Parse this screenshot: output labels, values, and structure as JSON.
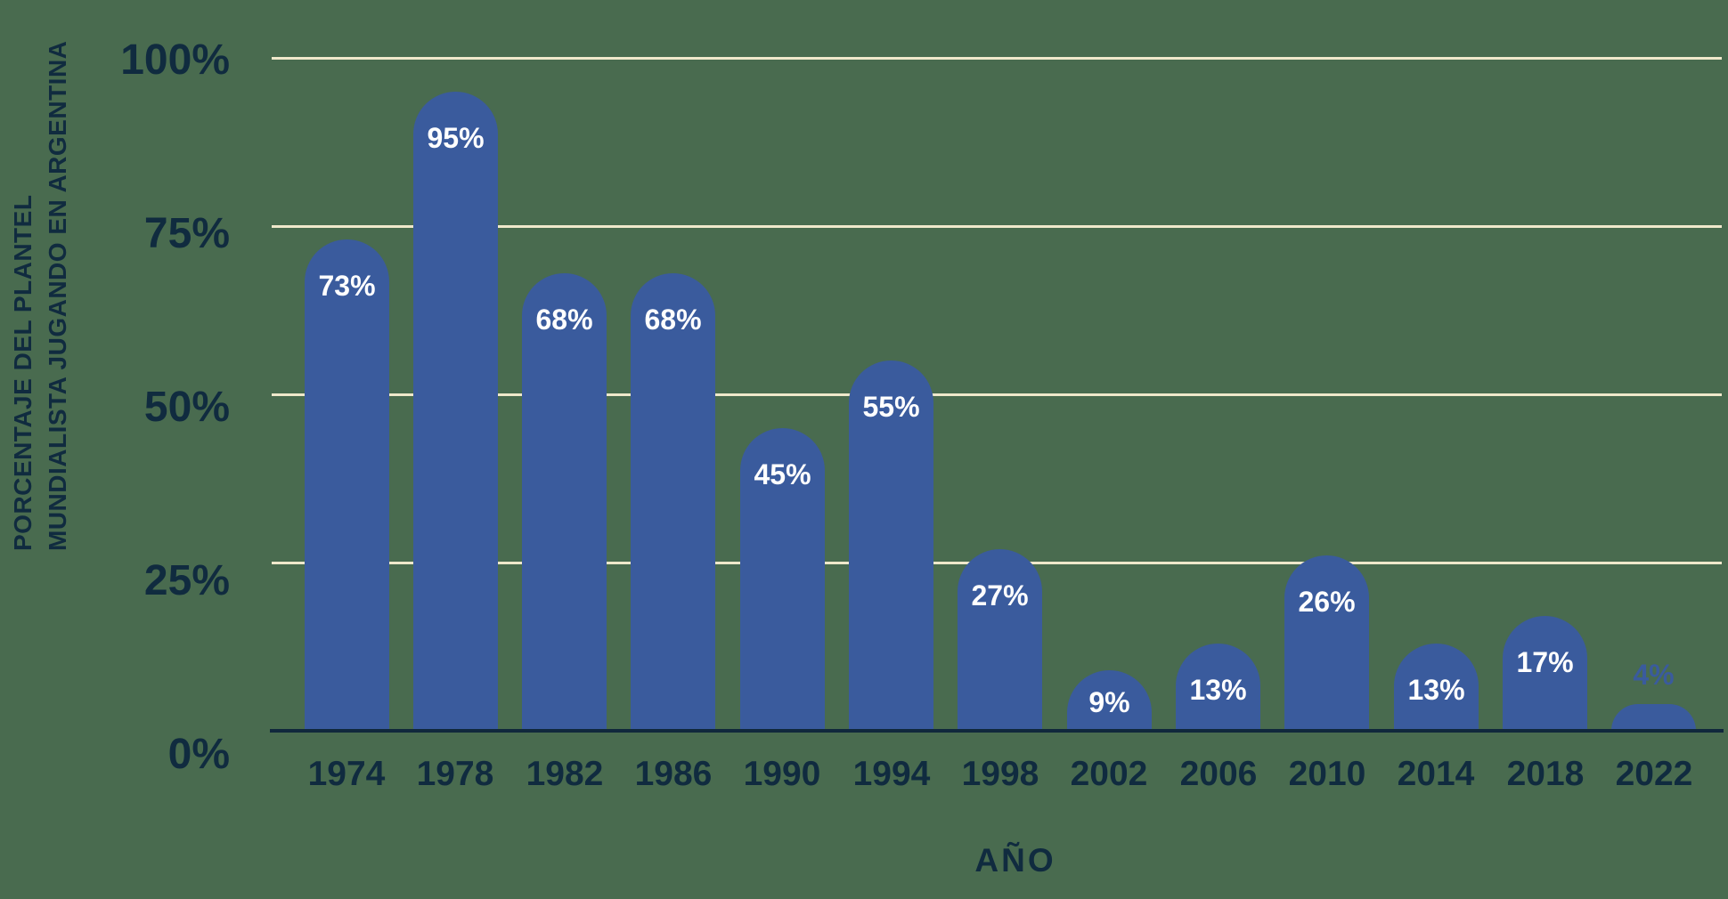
{
  "colors": {
    "background": "#496B4F",
    "bar": "#3A5B9D",
    "gridline": "#EFE8CB",
    "axis_text": "#102B3F",
    "baseline": "#10283C",
    "label_inside": "#FFFFFF",
    "label_outside": "#3A5B9D"
  },
  "axes": {
    "y_title_line1": "PORCENTAJE DEL PLANTEL",
    "y_title_line2": "MUNDIALISTA JUGANDO EN ARGENTINA",
    "x_title": "AÑO"
  },
  "chart_data": {
    "type": "bar",
    "title": "",
    "xlabel": "AÑO",
    "ylabel": "PORCENTAJE DEL PLANTEL MUNDIALISTA JUGANDO EN ARGENTINA",
    "categories": [
      "1974",
      "1978",
      "1982",
      "1986",
      "1990",
      "1994",
      "1998",
      "2002",
      "2006",
      "2010",
      "2014",
      "2018",
      "2022"
    ],
    "values": [
      73,
      95,
      68,
      68,
      45,
      55,
      27,
      9,
      13,
      26,
      13,
      17,
      4
    ],
    "value_labels": [
      "73%",
      "95%",
      "68%",
      "68%",
      "45%",
      "55%",
      "27%",
      "9%",
      "13%",
      "26%",
      "13%",
      "17%",
      "4%"
    ],
    "yticks": [
      "0%",
      "25%",
      "50%",
      "75%",
      "100%"
    ],
    "ylim": [
      0,
      100
    ],
    "grid": true,
    "legend": false,
    "bar_color": "#3A5B9D",
    "rounded_top": true
  }
}
